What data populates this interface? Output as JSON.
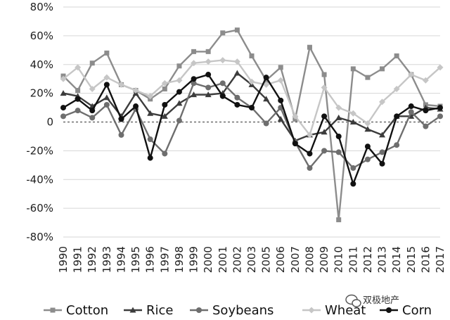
{
  "chart_data": {
    "type": "line",
    "title": "",
    "xlabel": "",
    "ylabel": "",
    "ylim": [
      -80,
      80
    ],
    "y_ticks": [
      80,
      60,
      40,
      20,
      0,
      -20,
      -40,
      -60,
      -80
    ],
    "y_tick_labels": [
      "80%",
      "60%",
      "40%",
      "20%",
      "0",
      "-20%",
      "-40%",
      "-60%",
      "-80%"
    ],
    "categories": [
      "1990",
      "1991",
      "1992",
      "1993",
      "1994",
      "1995",
      "1996",
      "1997",
      "1998",
      "1999",
      "2000",
      "2001",
      "2002",
      "2003",
      "2005",
      "2006",
      "2007",
      "2008",
      "2009",
      "2010",
      "2011",
      "2012",
      "2013",
      "2014",
      "2015",
      "2016",
      "2017"
    ],
    "grid": true,
    "zero_line": "dotted",
    "legend_position": "bottom",
    "series": [
      {
        "name": "Cotton",
        "color": "#8c8c8c",
        "marker": "square",
        "values": [
          32,
          22,
          41,
          48,
          26,
          22,
          16,
          23,
          39,
          49,
          49,
          62,
          64,
          46,
          29,
          38,
          2,
          52,
          33,
          -68,
          37,
          31,
          37,
          46,
          33,
          12,
          11
        ]
      },
      {
        "name": "Rice",
        "color": "#3c3c3c",
        "marker": "triangle",
        "values": [
          20,
          18,
          11,
          17,
          4,
          20,
          6,
          4,
          13,
          19,
          19,
          20,
          34,
          26,
          16,
          2,
          -13,
          -9,
          -7,
          3,
          0,
          -5,
          -9,
          4,
          4,
          10,
          9
        ]
      },
      {
        "name": "Soybeans",
        "color": "#6e6e6e",
        "marker": "circle",
        "values": [
          4,
          8,
          3,
          12,
          -9,
          9,
          -12,
          -22,
          1,
          27,
          24,
          27,
          17,
          10,
          -1,
          10,
          -14,
          -32,
          -20,
          -21,
          -32,
          -26,
          -21,
          -16,
          7,
          -3,
          4
        ]
      },
      {
        "name": "Wheat",
        "color": "#c6c6c6",
        "marker": "diamond",
        "values": [
          30,
          38,
          23,
          31,
          26,
          22,
          18,
          27,
          29,
          41,
          42,
          43,
          42,
          28,
          26,
          29,
          4,
          -9,
          24,
          10,
          6,
          -1,
          14,
          23,
          33,
          29,
          38
        ]
      },
      {
        "name": "Corn",
        "color": "#111111",
        "marker": "circle",
        "values": [
          10,
          16,
          8,
          26,
          2,
          11,
          -25,
          12,
          21,
          30,
          33,
          18,
          12,
          10,
          31,
          15,
          -15,
          -22,
          4,
          -10,
          -43,
          -17,
          -29,
          4,
          11,
          8,
          10
        ]
      }
    ]
  },
  "watermark": {
    "text": "双极地产",
    "icon": "wechat-icon"
  }
}
